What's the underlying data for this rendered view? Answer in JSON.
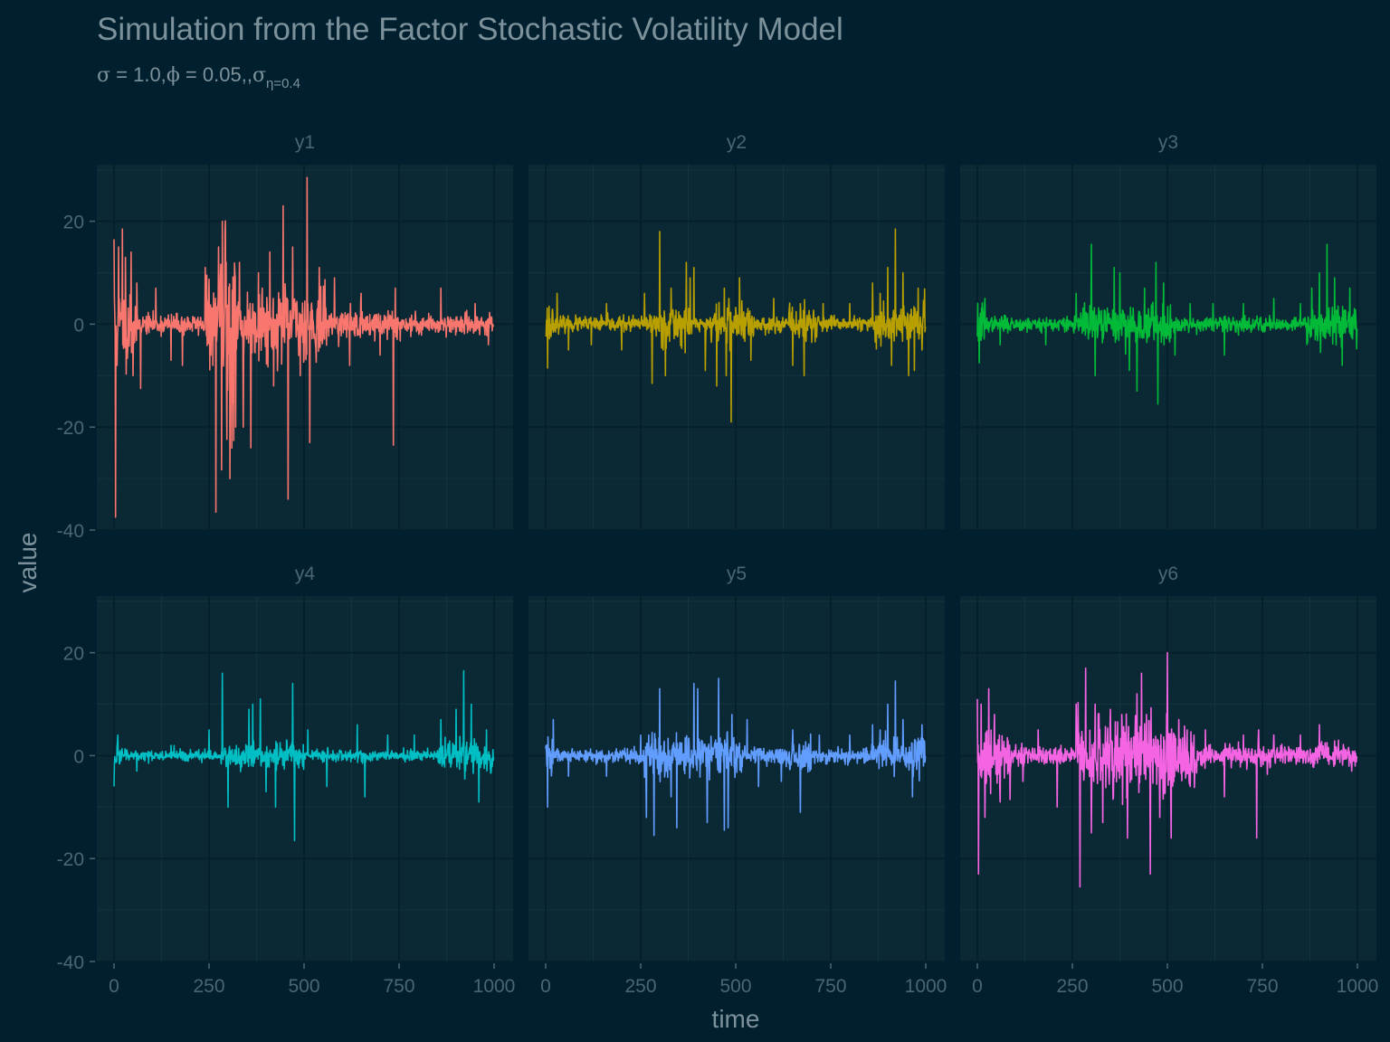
{
  "chart_data": {
    "type": "line",
    "facet": "small-multiples",
    "title": "Simulation from the Factor Stochastic Volatility Model",
    "subtitle": {
      "parts": [
        {
          "sym": "σ",
          "text": " = 1.0,"
        },
        {
          "sym": "ϕ",
          "text": " = 0.05,,"
        },
        {
          "sym": "σ",
          "text": ""
        }
      ],
      "subscript": "η=0.4"
    },
    "xlabel": "time",
    "ylabel": "value",
    "xlim": [
      0,
      1000
    ],
    "ylim": [
      -40,
      31
    ],
    "x_ticks": [
      "0",
      "250",
      "500",
      "750",
      "1000"
    ],
    "x_tick_values": [
      0,
      250,
      500,
      750,
      1000
    ],
    "y_ticks": [
      "20",
      "0",
      "-20",
      "-40"
    ],
    "y_tick_values": [
      20,
      0,
      -20,
      -40
    ],
    "grid": true,
    "legend": "none",
    "n_points": 1000,
    "panels": [
      {
        "name": "y1",
        "color": "#f8766d",
        "noise": 1.6,
        "seed": 11,
        "spikes": [
          [
            0,
            16.5
          ],
          [
            4,
            -37.5
          ],
          [
            8,
            -8
          ],
          [
            12,
            15
          ],
          [
            22,
            18.5
          ],
          [
            30,
            13
          ],
          [
            45,
            14
          ],
          [
            50,
            -10
          ],
          [
            60,
            8
          ],
          [
            70,
            -12.5
          ],
          [
            110,
            7
          ],
          [
            150,
            -7
          ],
          [
            180,
            -8
          ],
          [
            240,
            11
          ],
          [
            260,
            -8
          ],
          [
            268,
            -36.5
          ],
          [
            275,
            15
          ],
          [
            285,
            20
          ],
          [
            295,
            12
          ],
          [
            305,
            -30
          ],
          [
            320,
            -20
          ],
          [
            330,
            12
          ],
          [
            340,
            -20
          ],
          [
            360,
            -24
          ],
          [
            380,
            10
          ],
          [
            390,
            7
          ],
          [
            410,
            14
          ],
          [
            420,
            -12
          ],
          [
            445,
            23
          ],
          [
            458,
            -34
          ],
          [
            470,
            15
          ],
          [
            490,
            -10
          ],
          [
            508,
            28.5
          ],
          [
            515,
            -23
          ],
          [
            540,
            11
          ],
          [
            580,
            9
          ],
          [
            620,
            -8
          ],
          [
            650,
            6
          ],
          [
            700,
            -6
          ],
          [
            735,
            -23.5
          ],
          [
            740,
            7
          ],
          [
            860,
            7
          ],
          [
            950,
            4
          ],
          [
            985,
            -4
          ]
        ],
        "bursts": [
          [
            0,
            60,
            4
          ],
          [
            240,
            80,
            4
          ],
          [
            280,
            280,
            3.5
          ],
          [
            580,
            180,
            1.5
          ],
          [
            700,
            300,
            1.0
          ]
        ]
      },
      {
        "name": "y2",
        "color": "#b79f00",
        "noise": 1.2,
        "seed": 23,
        "spikes": [
          [
            5,
            -8.5
          ],
          [
            30,
            6
          ],
          [
            60,
            -5
          ],
          [
            120,
            -4
          ],
          [
            160,
            4
          ],
          [
            200,
            -5
          ],
          [
            260,
            6
          ],
          [
            280,
            -11.5
          ],
          [
            300,
            18
          ],
          [
            315,
            -10
          ],
          [
            330,
            7
          ],
          [
            370,
            12
          ],
          [
            380,
            9
          ],
          [
            390,
            11
          ],
          [
            420,
            -9
          ],
          [
            450,
            -12
          ],
          [
            470,
            7
          ],
          [
            475,
            -10
          ],
          [
            482,
            5
          ],
          [
            488,
            -19
          ],
          [
            510,
            9
          ],
          [
            540,
            -7
          ],
          [
            600,
            5
          ],
          [
            650,
            -8
          ],
          [
            670,
            4
          ],
          [
            680,
            -10
          ],
          [
            730,
            4
          ],
          [
            800,
            4
          ],
          [
            860,
            8
          ],
          [
            880,
            6
          ],
          [
            900,
            11
          ],
          [
            910,
            -8
          ],
          [
            920,
            18.5
          ],
          [
            940,
            10
          ],
          [
            955,
            -10
          ],
          [
            970,
            -9
          ],
          [
            980,
            7
          ],
          [
            990,
            -5
          ]
        ],
        "bursts": [
          [
            0,
            20,
            3
          ],
          [
            270,
            110,
            2.6
          ],
          [
            420,
            130,
            2.6
          ],
          [
            640,
            80,
            2.4
          ],
          [
            860,
            140,
            3
          ]
        ]
      },
      {
        "name": "y3",
        "color": "#00ba38",
        "noise": 1.2,
        "seed": 37,
        "spikes": [
          [
            5,
            -7.5
          ],
          [
            20,
            5
          ],
          [
            60,
            -4
          ],
          [
            180,
            -4
          ],
          [
            260,
            6
          ],
          [
            300,
            15.5
          ],
          [
            310,
            -10
          ],
          [
            360,
            11
          ],
          [
            375,
            10
          ],
          [
            400,
            -9
          ],
          [
            420,
            -13
          ],
          [
            440,
            7
          ],
          [
            470,
            12
          ],
          [
            475,
            -15.5
          ],
          [
            490,
            8
          ],
          [
            520,
            -6
          ],
          [
            560,
            4
          ],
          [
            620,
            4
          ],
          [
            650,
            -6
          ],
          [
            700,
            4
          ],
          [
            780,
            5
          ],
          [
            850,
            4
          ],
          [
            880,
            7
          ],
          [
            900,
            10
          ],
          [
            920,
            15.5
          ],
          [
            940,
            9
          ],
          [
            960,
            -8
          ],
          [
            980,
            7
          ]
        ],
        "bursts": [
          [
            0,
            20,
            3
          ],
          [
            270,
            110,
            2.4
          ],
          [
            380,
            130,
            2.6
          ],
          [
            860,
            140,
            2.6
          ]
        ]
      },
      {
        "name": "y4",
        "color": "#00bfc4",
        "noise": 0.9,
        "seed": 49,
        "spikes": [
          [
            0,
            -6
          ],
          [
            10,
            4
          ],
          [
            60,
            -3
          ],
          [
            150,
            2
          ],
          [
            250,
            5
          ],
          [
            285,
            16
          ],
          [
            300,
            -10
          ],
          [
            355,
            9
          ],
          [
            365,
            10
          ],
          [
            385,
            11
          ],
          [
            400,
            -7
          ],
          [
            425,
            -10
          ],
          [
            470,
            14
          ],
          [
            475,
            -16.5
          ],
          [
            510,
            5
          ],
          [
            560,
            -6
          ],
          [
            640,
            6
          ],
          [
            660,
            -8
          ],
          [
            720,
            4
          ],
          [
            790,
            4
          ],
          [
            860,
            7
          ],
          [
            900,
            9
          ],
          [
            920,
            16.5
          ],
          [
            940,
            10
          ],
          [
            960,
            -9
          ],
          [
            980,
            5
          ]
        ],
        "bursts": [
          [
            0,
            20,
            2
          ],
          [
            280,
            220,
            2.2
          ],
          [
            850,
            150,
            2.8
          ]
        ]
      },
      {
        "name": "y5",
        "color": "#619cff",
        "noise": 1.2,
        "seed": 61,
        "spikes": [
          [
            5,
            -10
          ],
          [
            20,
            7
          ],
          [
            60,
            -4
          ],
          [
            160,
            -4
          ],
          [
            250,
            4
          ],
          [
            265,
            -12
          ],
          [
            285,
            -15.5
          ],
          [
            300,
            13
          ],
          [
            330,
            -8
          ],
          [
            345,
            -14
          ],
          [
            390,
            14
          ],
          [
            400,
            13
          ],
          [
            425,
            -13
          ],
          [
            455,
            15
          ],
          [
            470,
            -14.5
          ],
          [
            480,
            -14
          ],
          [
            490,
            8
          ],
          [
            530,
            7
          ],
          [
            560,
            -6
          ],
          [
            620,
            -5
          ],
          [
            650,
            5
          ],
          [
            670,
            -11
          ],
          [
            720,
            4
          ],
          [
            800,
            4
          ],
          [
            860,
            6
          ],
          [
            880,
            5
          ],
          [
            900,
            10
          ],
          [
            920,
            14.5
          ],
          [
            940,
            7
          ],
          [
            965,
            -8
          ],
          [
            990,
            6
          ]
        ],
        "bursts": [
          [
            0,
            20,
            3
          ],
          [
            260,
            130,
            2.8
          ],
          [
            400,
            120,
            2.8
          ],
          [
            640,
            60,
            2.2
          ],
          [
            860,
            140,
            2.6
          ]
        ]
      },
      {
        "name": "y6",
        "color": "#f564e3",
        "noise": 1.6,
        "seed": 73,
        "spikes": [
          [
            0,
            11
          ],
          [
            3,
            -23
          ],
          [
            10,
            10
          ],
          [
            20,
            -12
          ],
          [
            30,
            13
          ],
          [
            45,
            8
          ],
          [
            60,
            -9
          ],
          [
            120,
            -5
          ],
          [
            160,
            5
          ],
          [
            210,
            -10
          ],
          [
            260,
            10
          ],
          [
            270,
            -25.5
          ],
          [
            285,
            17
          ],
          [
            300,
            -15
          ],
          [
            310,
            10
          ],
          [
            330,
            -13
          ],
          [
            350,
            9
          ],
          [
            380,
            8
          ],
          [
            395,
            -16
          ],
          [
            420,
            12
          ],
          [
            432,
            16
          ],
          [
            445,
            8
          ],
          [
            455,
            -23
          ],
          [
            480,
            -12
          ],
          [
            500,
            20
          ],
          [
            510,
            -16
          ],
          [
            530,
            7
          ],
          [
            560,
            -6
          ],
          [
            600,
            5
          ],
          [
            650,
            -8
          ],
          [
            700,
            4
          ],
          [
            735,
            -16
          ],
          [
            740,
            5
          ],
          [
            780,
            4
          ],
          [
            850,
            4
          ],
          [
            900,
            6
          ],
          [
            950,
            3
          ],
          [
            985,
            -3
          ]
        ],
        "bursts": [
          [
            0,
            90,
            3
          ],
          [
            260,
            320,
            3.5
          ],
          [
            600,
            400,
            1.1
          ]
        ]
      }
    ]
  }
}
